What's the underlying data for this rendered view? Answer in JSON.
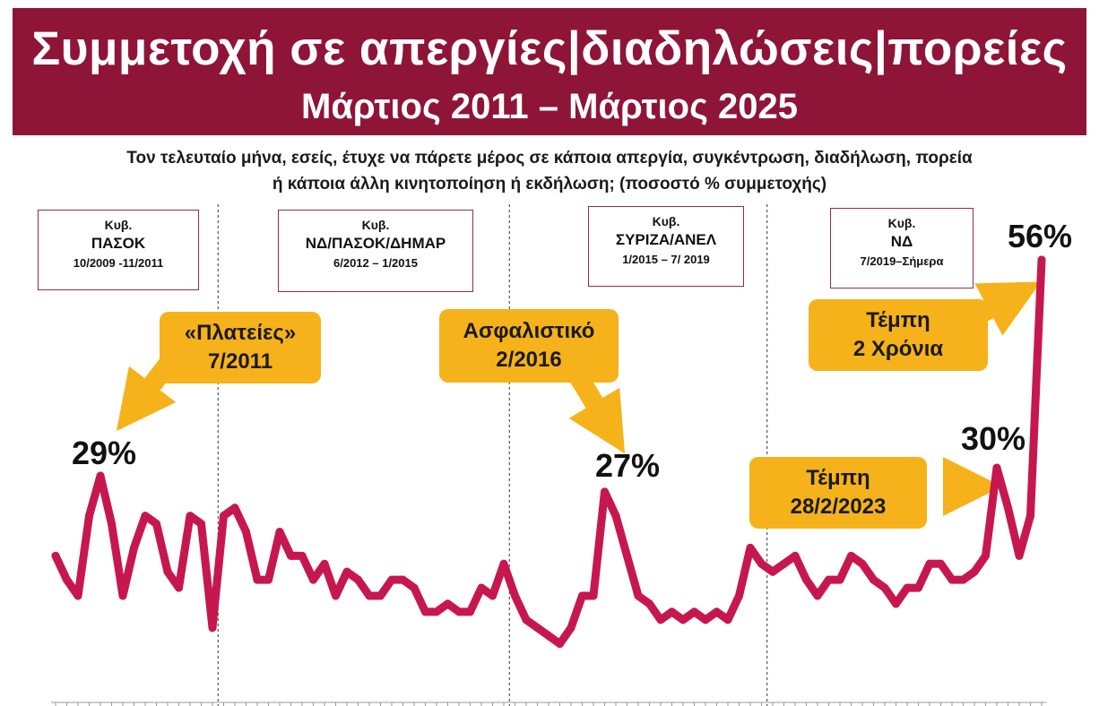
{
  "header": {
    "title": "Συμμετοχή σε απεργίες|διαδηλώσεις|πορείες",
    "subtitle": "Μάρτιος 2011 – Μάρτιος 2025"
  },
  "question": {
    "line1": "Τον τελευταίο μήνα, εσείς, έτυχε να πάρετε μέρος σε κάποια απεργία, συγκέντρωση, διαδήλωση, πορεία",
    "line2": "ή κάποια άλλη κινητοποίηση ή εκδήλωση; (ποσοστό %  συμμετοχής)"
  },
  "governments": [
    {
      "label": "Κυβ.",
      "party": "ΠΑΣΟΚ",
      "period": "10/2009 -11/2011"
    },
    {
      "label": "Κυβ.",
      "party": "ΝΔ/ΠΑΣΟΚ/ΔΗΜΑΡ",
      "period": "6/2012 – 1/2015"
    },
    {
      "label": "Κυβ.",
      "party": "ΣΥΡΙΖΑ/ΑΝΕΛ",
      "period": "1/2015 – 7/ 2019"
    },
    {
      "label": "Κυβ.",
      "party": "ΝΔ",
      "period": "7/2019–Σήμερα"
    }
  ],
  "callouts": {
    "plateies": {
      "line1": "«Πλατείες»",
      "line2": "7/2011"
    },
    "asfalistiko": {
      "line1": "Ασφαλιστικό",
      "line2": "2/2016"
    },
    "tempi2023": {
      "line1": "Τέμπη",
      "line2": "28/2/2023"
    },
    "tempi2years": {
      "line1": "Τέμπη",
      "line2": "2 Χρόνια"
    }
  },
  "colors": {
    "banner": "#8e1538",
    "line": "#c7174f",
    "callout": "#f5b21a",
    "box_border": "#9b2a4a"
  },
  "chart_data": {
    "type": "line",
    "series": [
      {
        "values": [
          19,
          16,
          14,
          24,
          29,
          23,
          14,
          20,
          24,
          23,
          17,
          15,
          24,
          23,
          10,
          24,
          25,
          22,
          16,
          16,
          22,
          19,
          19,
          16,
          18,
          14,
          17,
          16,
          14,
          14,
          16,
          16,
          15,
          12,
          12,
          13,
          12,
          12,
          15,
          14,
          18,
          14,
          11,
          10,
          9,
          8,
          10,
          14,
          14,
          27,
          24,
          19,
          14,
          13,
          11,
          12,
          11,
          12,
          11,
          12,
          11,
          14,
          20,
          18,
          17,
          18,
          19,
          16,
          14,
          16,
          16,
          19,
          18,
          16,
          15,
          13,
          15,
          15,
          18,
          18,
          16,
          16,
          17,
          19,
          30,
          25,
          19,
          24,
          56
        ],
        "labels": {
          "4": "29%",
          "49": "27%",
          "84": "30%",
          "88": "56%"
        }
      }
    ],
    "ylim": [
      0,
      60
    ],
    "grid": false,
    "government_change_indices": [
      14,
      40,
      63
    ]
  }
}
